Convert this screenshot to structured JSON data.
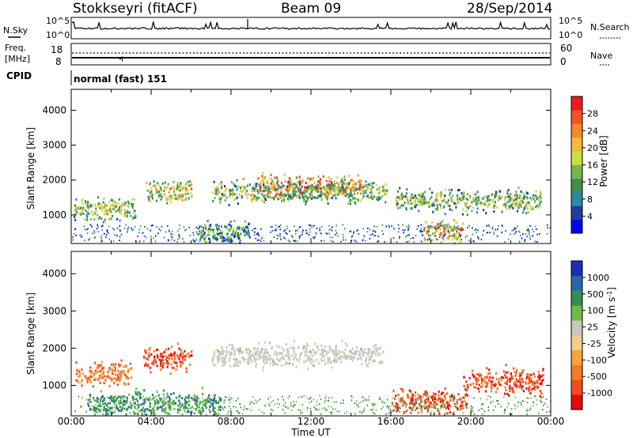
{
  "header": {
    "station": "Stokkseyri (fitACF)",
    "beam": "Beam 09",
    "date": "28/Sep/2014"
  },
  "nsky_panel": {
    "left_label": "N.Sky",
    "right_label": "N.Search",
    "left_ticks": [
      "10^5",
      "10^0"
    ],
    "right_ticks": [
      "10^5",
      "10^0"
    ]
  },
  "freq_panel": {
    "left_label_1": "Freq.",
    "left_label_2": "[MHz]",
    "right_label": "Nave",
    "left_ticks": [
      "18",
      "8"
    ],
    "right_ticks": [
      "60",
      "0"
    ]
  },
  "cpid_panel": {
    "label": "CPID",
    "value": "normal (fast) 151"
  },
  "x_axis": {
    "label": "Time UT",
    "ticks": [
      "00:00",
      "04:00",
      "08:00",
      "12:00",
      "16:00",
      "20:00",
      "00:00"
    ]
  },
  "chart_data": [
    {
      "type": "heatmap",
      "title": "",
      "xlabel": "Time UT",
      "ylabel": "Slant Range [km]",
      "x_range_hours": [
        0,
        24
      ],
      "ylim": [
        180,
        4600
      ],
      "y_ticks": [
        "1000",
        "2000",
        "3000",
        "4000"
      ],
      "colorbar": {
        "label": "Power [dB]",
        "ticks": [
          "28",
          "24",
          "20",
          "16",
          "12",
          "8",
          "4"
        ],
        "colors": [
          "#0000ff",
          "#1e3fa0",
          "#2a8aa0",
          "#3f8f4f",
          "#74b84d",
          "#c8df40",
          "#f5b93a",
          "#f38a2c",
          "#f4512a",
          "#e91e1e"
        ]
      },
      "features": [
        {
          "t_start": 9.3,
          "t_end": 14.6,
          "range_km": 1800,
          "level": 26
        },
        {
          "t_start": 7.0,
          "t_end": 15.8,
          "range_km": 1650,
          "level": 14
        },
        {
          "t_start": 3.7,
          "t_end": 6.0,
          "range_km": 1700,
          "level": 18
        },
        {
          "t_start": 0.1,
          "t_end": 3.2,
          "range_km": 1150,
          "level": 16
        },
        {
          "t_start": 16.2,
          "t_end": 23.5,
          "range_km": 1400,
          "level": 14
        },
        {
          "t_start": 17.6,
          "t_end": 19.6,
          "range_km": 480,
          "level": 22
        },
        {
          "t_start": 6.2,
          "t_end": 8.9,
          "range_km": 480,
          "level": 12
        }
      ]
    },
    {
      "type": "heatmap",
      "title": "",
      "xlabel": "Time UT",
      "ylabel": "Slant Range [km]",
      "x_range_hours": [
        0,
        24
      ],
      "ylim": [
        180,
        4600
      ],
      "y_ticks": [
        "1000",
        "2000",
        "3000",
        "4000"
      ],
      "colorbar": {
        "label": "Velocity [m s^-1]",
        "ticks": [
          "1000",
          "500",
          "100",
          "25",
          "-25",
          "-100",
          "-500",
          "-1000"
        ],
        "colors": [
          "#e30a0a",
          "#f24d1f",
          "#f57b22",
          "#f5a43a",
          "#f2cf86",
          "#c8c8c0",
          "#6fbb45",
          "#31924f",
          "#2c67a5",
          "#1d2fb4"
        ]
      },
      "features": [
        {
          "t_start": 7.0,
          "t_end": 15.6,
          "range_km": 1800,
          "velocity": 0
        },
        {
          "t_start": 3.6,
          "t_end": 6.0,
          "range_km": 1700,
          "velocity": -300
        },
        {
          "t_start": 0.1,
          "t_end": 3.0,
          "range_km": 1300,
          "velocity": -200
        },
        {
          "t_start": 16.0,
          "t_end": 19.8,
          "range_km": 550,
          "velocity": -400
        },
        {
          "t_start": 19.6,
          "t_end": 23.6,
          "range_km": 1100,
          "velocity": -600
        },
        {
          "t_start": 0.8,
          "t_end": 7.5,
          "range_km": 500,
          "velocity": 150
        }
      ]
    }
  ]
}
